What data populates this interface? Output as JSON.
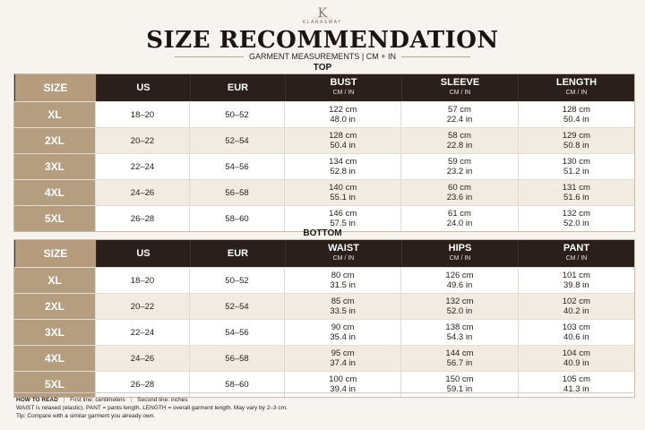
{
  "header": {
    "brand": "KLARASWAY",
    "title": "SIZE RECOMMENDATION",
    "subtitle": "GARMENT MEASUREMENTS | CM + IN"
  },
  "top": {
    "section_title": "TOP",
    "columns": [
      {
        "label": "SIZE",
        "sub": ""
      },
      {
        "label": "US",
        "sub": ""
      },
      {
        "label": "EUR",
        "sub": ""
      },
      {
        "label": "BUST",
        "sub": "CM / IN"
      },
      {
        "label": "SLEEVE",
        "sub": "CM / IN"
      },
      {
        "label": "LENGTH",
        "sub": "CM / IN"
      }
    ],
    "rows": [
      {
        "size": "XL",
        "us": "18–20",
        "eur": "50–52",
        "m": [
          [
            "122 cm",
            "48.0 in"
          ],
          [
            "57 cm",
            "22.4 in"
          ],
          [
            "128 cm",
            "50.4 in"
          ]
        ]
      },
      {
        "size": "2XL",
        "us": "20–22",
        "eur": "52–54",
        "m": [
          [
            "128 cm",
            "50.4 in"
          ],
          [
            "58 cm",
            "22.8 in"
          ],
          [
            "129 cm",
            "50.8 in"
          ]
        ]
      },
      {
        "size": "3XL",
        "us": "22–24",
        "eur": "54–56",
        "m": [
          [
            "134 cm",
            "52.8 in"
          ],
          [
            "59 cm",
            "23.2 in"
          ],
          [
            "130 cm",
            "51.2 in"
          ]
        ]
      },
      {
        "size": "4XL",
        "us": "24–26",
        "eur": "56–58",
        "m": [
          [
            "140 cm",
            "55.1 in"
          ],
          [
            "60 cm",
            "23.6 in"
          ],
          [
            "131 cm",
            "51.6 in"
          ]
        ]
      },
      {
        "size": "5XL",
        "us": "26–28",
        "eur": "58–60",
        "m": [
          [
            "146 cm",
            "57.5 in"
          ],
          [
            "61 cm",
            "24.0 in"
          ],
          [
            "132 cm",
            "52.0 in"
          ]
        ]
      }
    ]
  },
  "bottom": {
    "section_title": "BOTTOM",
    "columns": [
      {
        "label": "SIZE",
        "sub": ""
      },
      {
        "label": "US",
        "sub": ""
      },
      {
        "label": "EUR",
        "sub": ""
      },
      {
        "label": "WAIST",
        "sub": "CM / IN"
      },
      {
        "label": "HIPS",
        "sub": "CM / IN"
      },
      {
        "label": "PANT",
        "sub": "CM / IN"
      }
    ],
    "rows": [
      {
        "size": "XL",
        "us": "18–20",
        "eur": "50–52",
        "m": [
          [
            "80 cm",
            "31.5 in"
          ],
          [
            "126 cm",
            "49.6 in"
          ],
          [
            "101 cm",
            "39.8 in"
          ]
        ]
      },
      {
        "size": "2XL",
        "us": "20–22",
        "eur": "52–54",
        "m": [
          [
            "85 cm",
            "33.5 in"
          ],
          [
            "132 cm",
            "52.0 in"
          ],
          [
            "102 cm",
            "40.2 in"
          ]
        ]
      },
      {
        "size": "3XL",
        "us": "22–24",
        "eur": "54–56",
        "m": [
          [
            "90 cm",
            "35.4 in"
          ],
          [
            "138 cm",
            "54.3 in"
          ],
          [
            "103 cm",
            "40.6 in"
          ]
        ]
      },
      {
        "size": "4XL",
        "us": "24–26",
        "eur": "56–58",
        "m": [
          [
            "95 cm",
            "37.4 in"
          ],
          [
            "144 cm",
            "56.7 in"
          ],
          [
            "104 cm",
            "40.9 in"
          ]
        ]
      },
      {
        "size": "5XL",
        "us": "26–28",
        "eur": "58–60",
        "m": [
          [
            "100 cm",
            "39.4 in"
          ],
          [
            "150 cm",
            "59.1 in"
          ],
          [
            "105 cm",
            "41.3 in"
          ]
        ]
      }
    ]
  },
  "footer": {
    "how_label": "HOW TO READ",
    "how_text": "First line: centimeters",
    "sep": "|",
    "how_text2": "Second line: inches",
    "line2": "WAIST is relaxed (elastic). PANT = pants length. LENGTH = overall garment length. May vary by 2–3 cm.",
    "line3": "Tip: Compare with a similar garment you already own."
  },
  "colors": {
    "header_dark": "#2a1f1a",
    "size_col": "#b59d80",
    "background": "#f7f3ee",
    "alt_row": "#f2ebe2"
  }
}
